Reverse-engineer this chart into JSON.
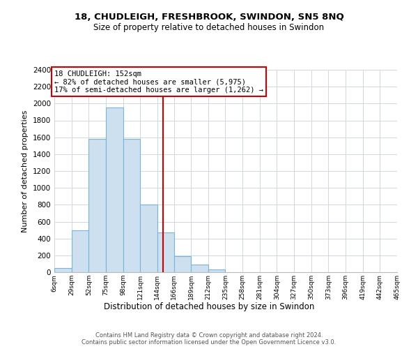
{
  "title": "18, CHUDLEIGH, FRESHBROOK, SWINDON, SN5 8NQ",
  "subtitle": "Size of property relative to detached houses in Swindon",
  "xlabel": "Distribution of detached houses by size in Swindon",
  "ylabel": "Number of detached properties",
  "bin_edges": [
    6,
    29,
    52,
    75,
    98,
    121,
    144,
    166,
    189,
    212,
    235,
    258,
    281,
    304,
    327,
    350,
    373,
    396,
    419,
    442,
    465
  ],
  "bin_counts": [
    50,
    500,
    1580,
    1950,
    1580,
    800,
    470,
    190,
    90,
    30,
    0,
    0,
    0,
    0,
    0,
    0,
    0,
    0,
    0,
    0
  ],
  "bar_color": "#cce0f0",
  "bar_edge_color": "#7ab4d8",
  "property_size": 152,
  "vline_color": "#cc0000",
  "annotation_line1": "18 CHUDLEIGH: 152sqm",
  "annotation_line2": "← 82% of detached houses are smaller (5,975)",
  "annotation_line3": "17% of semi-detached houses are larger (1,262) →",
  "annotation_box_color": "white",
  "annotation_box_edge": "#cc0000",
  "ylim": [
    0,
    2400
  ],
  "yticks": [
    0,
    200,
    400,
    600,
    800,
    1000,
    1200,
    1400,
    1600,
    1800,
    2000,
    2200,
    2400
  ],
  "tick_labels": [
    "6sqm",
    "29sqm",
    "52sqm",
    "75sqm",
    "98sqm",
    "121sqm",
    "144sqm",
    "166sqm",
    "189sqm",
    "212sqm",
    "235sqm",
    "258sqm",
    "281sqm",
    "304sqm",
    "327sqm",
    "350sqm",
    "373sqm",
    "396sqm",
    "419sqm",
    "442sqm",
    "465sqm"
  ],
  "footer_text": "Contains HM Land Registry data © Crown copyright and database right 2024.\nContains public sector information licensed under the Open Government Licence v3.0.",
  "grid_color": "#d0d8e0",
  "background_color": "#ffffff"
}
